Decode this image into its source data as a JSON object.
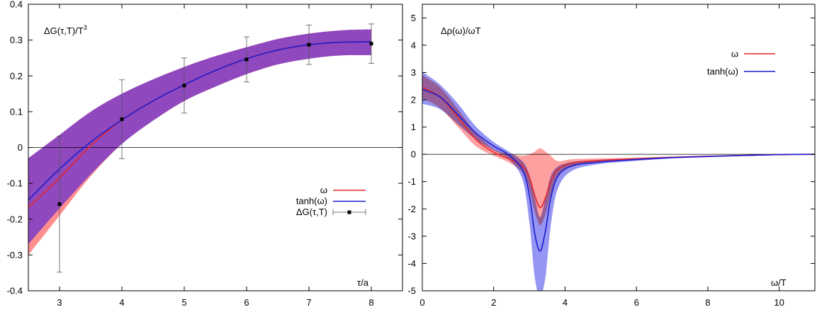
{
  "chart_data": [
    {
      "type": "line",
      "title": "ΔG(τ,T)/T",
      "title_sup": "3",
      "xlabel": "τ/a",
      "xlim": [
        2.5,
        8.5
      ],
      "ylim": [
        -0.4,
        0.4
      ],
      "xticks": [
        "3",
        "4",
        "5",
        "6",
        "7",
        "8"
      ],
      "xtick_values": [
        3,
        4,
        5,
        6,
        7,
        8
      ],
      "yticks": [
        "-0.4",
        "-0.3",
        "-0.2",
        "-0.1",
        "0",
        "0.1",
        "0.2",
        "0.3",
        "0.4"
      ],
      "ytick_values": [
        -0.4,
        -0.3,
        -0.2,
        -0.1,
        0,
        0.1,
        0.2,
        0.3,
        0.4
      ],
      "grid": false,
      "legend_position": "bottom-right",
      "colors": {
        "red": "#e8252a",
        "blue": "#1c1ccf",
        "red_band": "#ff8f8f",
        "purple_band": "#8f48bd",
        "points": "#000000"
      },
      "series": [
        {
          "name": "ω",
          "color": "#e8252a",
          "x": [
            2.5,
            3,
            3.5,
            4,
            4.5,
            5,
            5.5,
            6,
            6.5,
            7,
            7.5,
            8
          ],
          "y": [
            -0.167,
            -0.085,
            0.005,
            0.077,
            0.13,
            0.175,
            0.215,
            0.248,
            0.272,
            0.287,
            0.294,
            0.295
          ],
          "band_lower": [
            -0.3,
            -0.19,
            -0.08,
            0.01,
            0.075,
            0.13,
            0.17,
            0.205,
            0.232,
            0.248,
            0.257,
            0.258
          ],
          "band_upper": [
            -0.03,
            0.035,
            0.1,
            0.15,
            0.19,
            0.225,
            0.255,
            0.28,
            0.303,
            0.318,
            0.327,
            0.33
          ]
        },
        {
          "name": "tanh(ω)",
          "color": "#1c1ccf",
          "x": [
            2.5,
            3,
            3.5,
            4,
            4.5,
            5,
            5.5,
            6,
            6.5,
            7,
            7.5,
            8
          ],
          "y": [
            -0.147,
            -0.06,
            0.015,
            0.077,
            0.13,
            0.175,
            0.215,
            0.248,
            0.272,
            0.287,
            0.294,
            0.295
          ],
          "band_lower": [
            -0.27,
            -0.17,
            -0.075,
            0.01,
            0.075,
            0.13,
            0.17,
            0.205,
            0.232,
            0.248,
            0.257,
            0.258
          ],
          "band_upper": [
            -0.03,
            0.035,
            0.1,
            0.15,
            0.19,
            0.225,
            0.255,
            0.28,
            0.303,
            0.318,
            0.327,
            0.33
          ]
        },
        {
          "name": "ΔG(τ,T)",
          "color": "#000000",
          "x": [
            3,
            4,
            5,
            6,
            7,
            8
          ],
          "y": [
            -0.158,
            0.079,
            0.173,
            0.246,
            0.287,
            0.29
          ],
          "err": [
            0.19,
            0.11,
            0.077,
            0.063,
            0.055,
            0.055
          ]
        }
      ]
    },
    {
      "type": "line",
      "title": "Δρ(ω)/ωT",
      "xlabel": "ω/T",
      "xlim": [
        0,
        11
      ],
      "ylim": [
        -5,
        5.5
      ],
      "xticks": [
        "0",
        "2",
        "4",
        "6",
        "8",
        "10"
      ],
      "xtick_values": [
        0,
        2,
        4,
        6,
        8,
        10
      ],
      "yticks": [
        "-5",
        "-4",
        "-3",
        "-2",
        "-1",
        "0",
        "1",
        "2",
        "3",
        "4",
        "5"
      ],
      "ytick_values": [
        -5,
        -4,
        -3,
        -2,
        -1,
        0,
        1,
        2,
        3,
        4,
        5
      ],
      "grid": false,
      "legend_position": "top-right",
      "colors": {
        "red": "#e8252a",
        "blue": "#1c1ccf",
        "red_band": "#ff8f8f",
        "blue_band": "#8f8ff2",
        "overlap": "#8f48bd"
      },
      "series": [
        {
          "name": "ω",
          "color": "#e8252a",
          "x": [
            0,
            0.5,
            1,
            1.5,
            2,
            2.4,
            2.8,
            3.0,
            3.15,
            3.3,
            3.45,
            3.6,
            3.8,
            4.2,
            5,
            6,
            7,
            8,
            9,
            10,
            11
          ],
          "y": [
            2.45,
            2.1,
            1.35,
            0.55,
            0.08,
            -0.15,
            -0.42,
            -0.85,
            -1.5,
            -1.95,
            -1.6,
            -1.0,
            -0.55,
            -0.32,
            -0.22,
            -0.17,
            -0.11,
            -0.07,
            -0.04,
            -0.01,
            0.0
          ],
          "band_lower": [
            2.05,
            1.7,
            1.0,
            0.3,
            -0.05,
            -0.28,
            -0.65,
            -1.3,
            -2.1,
            -2.6,
            -2.2,
            -1.5,
            -0.8,
            -0.45,
            -0.28,
            -0.21,
            -0.14,
            -0.09,
            -0.05,
            -0.02,
            -0.01
          ],
          "band_upper": [
            2.9,
            2.45,
            1.65,
            0.78,
            0.2,
            0.02,
            -0.05,
            0.0,
            0.1,
            0.22,
            0.1,
            -0.05,
            -0.25,
            -0.18,
            -0.15,
            -0.12,
            -0.08,
            -0.05,
            -0.03,
            0.0,
            0.01
          ]
        },
        {
          "name": "tanh(ω)",
          "color": "#1c1ccf",
          "x": [
            0,
            0.5,
            1,
            1.5,
            2,
            2.4,
            2.8,
            3.0,
            3.15,
            3.3,
            3.45,
            3.6,
            3.8,
            4.2,
            5,
            6,
            7,
            8,
            9,
            10,
            11
          ],
          "y": [
            2.38,
            2.1,
            1.45,
            0.78,
            0.3,
            0.0,
            -0.55,
            -1.5,
            -2.9,
            -3.55,
            -2.8,
            -1.6,
            -0.8,
            -0.42,
            -0.28,
            -0.19,
            -0.12,
            -0.08,
            -0.04,
            -0.01,
            0.0
          ],
          "band_lower": [
            1.85,
            1.65,
            1.1,
            0.55,
            0.15,
            -0.15,
            -0.9,
            -2.5,
            -4.5,
            -5.2,
            -4.5,
            -2.6,
            -1.25,
            -0.6,
            -0.35,
            -0.24,
            -0.15,
            -0.1,
            -0.06,
            -0.02,
            -0.01
          ],
          "band_upper": [
            3.02,
            2.55,
            1.85,
            1.02,
            0.45,
            0.12,
            -0.25,
            -0.75,
            -1.6,
            -2.3,
            -1.6,
            -0.8,
            -0.45,
            -0.28,
            -0.2,
            -0.14,
            -0.09,
            -0.06,
            -0.03,
            0.0,
            0.01
          ]
        }
      ]
    }
  ]
}
